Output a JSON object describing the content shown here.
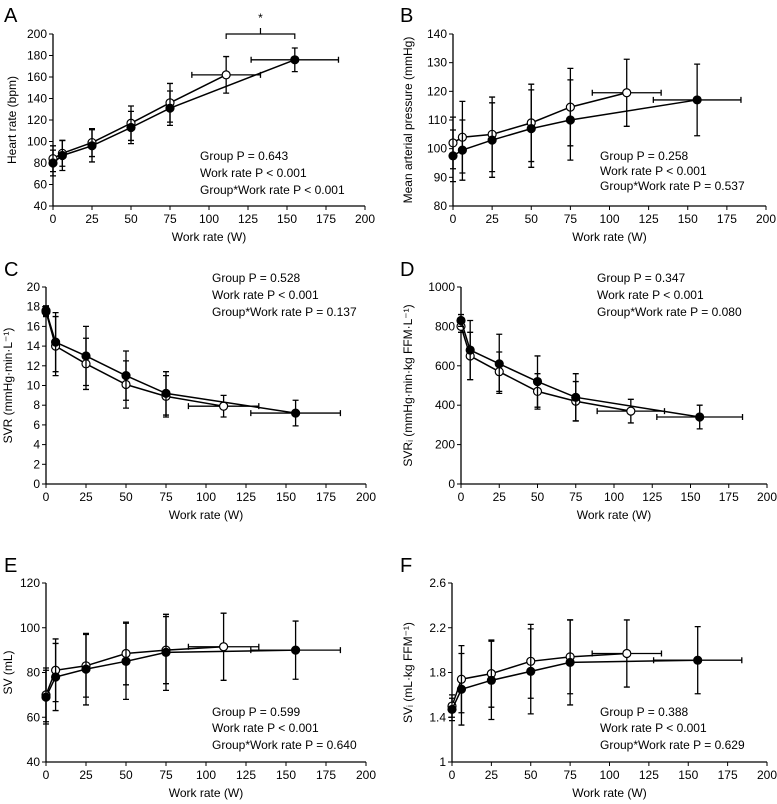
{
  "chart_data": [
    {
      "panel": "A",
      "type": "line",
      "ylabel": "Heart rate (bpm)",
      "xlabel": "Work rate (W)",
      "ylim": [
        40,
        200
      ],
      "yticks": [
        40,
        60,
        80,
        100,
        120,
        140,
        160,
        180,
        200
      ],
      "xlim": [
        0,
        200
      ],
      "xticks": [
        0,
        25,
        50,
        75,
        100,
        125,
        150,
        175,
        200
      ],
      "stats": [
        "Group P = 0.643",
        "Work rate P < 0.001",
        "Group*Work rate P < 0.001"
      ],
      "annotation": "*",
      "bracket": [
        111,
        155
      ],
      "series": [
        {
          "name": "open",
          "x": [
            0,
            6,
            25,
            50,
            75,
            111
          ],
          "y": [
            84,
            89,
            99,
            117,
            136,
            162
          ],
          "yerr": [
            12,
            12,
            13,
            16,
            18,
            17
          ],
          "xerr_last": 22
        },
        {
          "name": "closed",
          "x": [
            0,
            6,
            25,
            50,
            75,
            155
          ],
          "y": [
            80,
            87,
            96,
            113,
            131,
            176
          ],
          "yerr": [
            12,
            14,
            15,
            15,
            16,
            11
          ],
          "xerr_last": 28
        }
      ]
    },
    {
      "panel": "B",
      "type": "line",
      "ylabel": "Mean arterial pressure (mmHg)",
      "xlabel": "Work rate (W)",
      "ylim": [
        80,
        140
      ],
      "yticks": [
        80,
        90,
        100,
        110,
        120,
        130,
        140
      ],
      "xlim": [
        0,
        200
      ],
      "xticks": [
        0,
        25,
        50,
        75,
        100,
        125,
        150,
        175,
        200
      ],
      "stats": [
        "Group P = 0.258",
        "Work rate P < 0.001",
        "Group*Work rate P = 0.537"
      ],
      "series": [
        {
          "name": "open",
          "x": [
            0,
            6,
            25,
            50,
            75,
            111
          ],
          "y": [
            102,
            104,
            105,
            109,
            114.5,
            119.5
          ],
          "yerr": [
            9,
            12.5,
            13,
            13.5,
            13.5,
            11.7
          ],
          "xerr_last": 22
        },
        {
          "name": "closed",
          "x": [
            0,
            6,
            25,
            50,
            75,
            156
          ],
          "y": [
            97.5,
            99.5,
            103,
            107,
            110,
            117
          ],
          "yerr": [
            9,
            10.5,
            13,
            13.5,
            14,
            12.5
          ],
          "xerr_last": 28
        }
      ]
    },
    {
      "panel": "C",
      "type": "line",
      "ylabel": "SVR (mmHg·min·L⁻¹)",
      "xlabel": "Work rate (W)",
      "ylim": [
        0,
        20
      ],
      "yticks": [
        0,
        2,
        4,
        6,
        8,
        10,
        12,
        14,
        16,
        18,
        20
      ],
      "xlim": [
        0,
        200
      ],
      "xticks": [
        0,
        25,
        50,
        75,
        100,
        125,
        150,
        175,
        200
      ],
      "stats": [
        "Group P = 0.528",
        "Work rate P < 0.001",
        "Group*Work rate P = 0.137"
      ],
      "series": [
        {
          "name": "open",
          "x": [
            0,
            6,
            25,
            50,
            75,
            111
          ],
          "y": [
            17.5,
            14,
            12.2,
            10.1,
            8.9,
            7.9
          ],
          "yerr": [
            0.5,
            3,
            2.6,
            2.4,
            2.1,
            1.1
          ],
          "xerr_last": 22
        },
        {
          "name": "closed",
          "x": [
            0,
            6,
            25,
            50,
            75,
            156
          ],
          "y": [
            17.6,
            14.4,
            13,
            11,
            9.2,
            7.2
          ],
          "yerr": [
            0.5,
            3,
            3,
            2.5,
            2.2,
            1.3
          ],
          "xerr_last": 28
        }
      ]
    },
    {
      "panel": "D",
      "type": "line",
      "ylabel": "SVRᵢ (mmHg·min·kg FFM·L⁻¹)",
      "xlabel": "Work rate (W)",
      "ylim": [
        0,
        1000
      ],
      "yticks": [
        0,
        200,
        400,
        600,
        800,
        1000
      ],
      "xlim": [
        0,
        200
      ],
      "xticks": [
        0,
        25,
        50,
        75,
        100,
        125,
        150,
        175,
        200
      ],
      "stats": [
        "Group P = 0.347",
        "Work rate P < 0.001",
        "Group*Work rate P = 0.080"
      ],
      "series": [
        {
          "name": "open",
          "x": [
            0,
            6,
            25,
            50,
            75,
            111
          ],
          "y": [
            800,
            650,
            570,
            470,
            420,
            370
          ],
          "yerr": [
            30,
            120,
            100,
            90,
            100,
            60
          ],
          "xerr_last": 22
        },
        {
          "name": "closed",
          "x": [
            0,
            6,
            25,
            50,
            75,
            156
          ],
          "y": [
            830,
            680,
            610,
            520,
            440,
            340
          ],
          "yerr": [
            30,
            150,
            150,
            130,
            120,
            60
          ],
          "xerr_last": 28
        }
      ]
    },
    {
      "panel": "E",
      "type": "line",
      "ylabel": "SV (mL)",
      "xlabel": "Work rate (W)",
      "ylim": [
        40,
        120
      ],
      "yticks": [
        40,
        60,
        80,
        100,
        120
      ],
      "xlim": [
        0,
        200
      ],
      "xticks": [
        0,
        25,
        50,
        75,
        100,
        125,
        150,
        175,
        200
      ],
      "stats": [
        "Group P = 0.599",
        "Work rate P < 0.001",
        "Group*Work rate P = 0.640"
      ],
      "series": [
        {
          "name": "open",
          "x": [
            0,
            6,
            25,
            50,
            75,
            111
          ],
          "y": [
            70,
            81,
            83,
            88.5,
            90,
            91.5
          ],
          "yerr": [
            12,
            14,
            14,
            14,
            15,
            15
          ],
          "xerr_last": 22
        },
        {
          "name": "closed",
          "x": [
            0,
            6,
            25,
            50,
            75,
            156
          ],
          "y": [
            69,
            78,
            81.5,
            85,
            89,
            90
          ],
          "yerr": [
            12,
            15,
            16,
            17,
            17,
            13
          ],
          "xerr_last": 28
        }
      ]
    },
    {
      "panel": "F",
      "type": "line",
      "ylabel": "SVᵢ (mL·kg FFM⁻¹)",
      "xlabel": "Work rate (W)",
      "ylim": [
        1.0,
        2.6
      ],
      "yticks": [
        1.0,
        1.4,
        1.8,
        2.2,
        2.6
      ],
      "xlim": [
        0,
        200
      ],
      "xticks": [
        0,
        25,
        50,
        75,
        100,
        125,
        150,
        175,
        200
      ],
      "stats": [
        "Group P = 0.388",
        "Work rate P < 0.001",
        "Group*Work rate P = 0.629"
      ],
      "series": [
        {
          "name": "open",
          "x": [
            0,
            6,
            25,
            50,
            75,
            111
          ],
          "y": [
            1.5,
            1.74,
            1.79,
            1.9,
            1.94,
            1.97
          ],
          "yerr": [
            0.1,
            0.3,
            0.3,
            0.33,
            0.33,
            0.3
          ],
          "xerr_last": 22
        },
        {
          "name": "closed",
          "x": [
            0,
            6,
            25,
            50,
            75,
            156
          ],
          "y": [
            1.47,
            1.65,
            1.73,
            1.81,
            1.89,
            1.91
          ],
          "yerr": [
            0.1,
            0.32,
            0.35,
            0.38,
            0.38,
            0.3
          ],
          "xerr_last": 28
        }
      ]
    }
  ]
}
